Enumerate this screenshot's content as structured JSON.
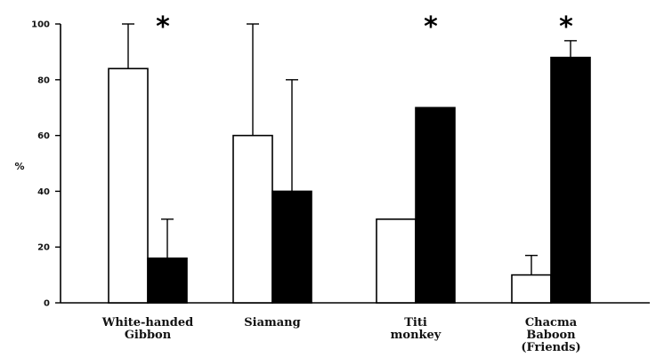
{
  "chart_data": {
    "type": "bar",
    "title": "",
    "xlabel": "",
    "ylabel": "%",
    "ylim": [
      0,
      100
    ],
    "yticks": [
      "0",
      "20",
      "40",
      "60",
      "80",
      "100"
    ],
    "grid": false,
    "categories": [
      [
        "White-handed",
        "Gibbon"
      ],
      [
        "Siamang"
      ],
      [
        "Titi",
        "monkey"
      ],
      [
        "Chacma",
        "Baboon",
        "(Friends)"
      ]
    ],
    "series": [
      {
        "color": "#ffffff",
        "values": [
          84,
          60,
          30,
          10
        ],
        "error_upper": [
          100,
          100,
          null,
          17
        ]
      },
      {
        "color": "#000000",
        "values": [
          16,
          40,
          70,
          88
        ],
        "error_upper": [
          30,
          80,
          null,
          94
        ]
      }
    ],
    "annotations": [
      {
        "category_index": 0,
        "text": "*"
      },
      {
        "category_index": 2,
        "text": "*"
      },
      {
        "category_index": 3,
        "text": "*"
      }
    ]
  }
}
